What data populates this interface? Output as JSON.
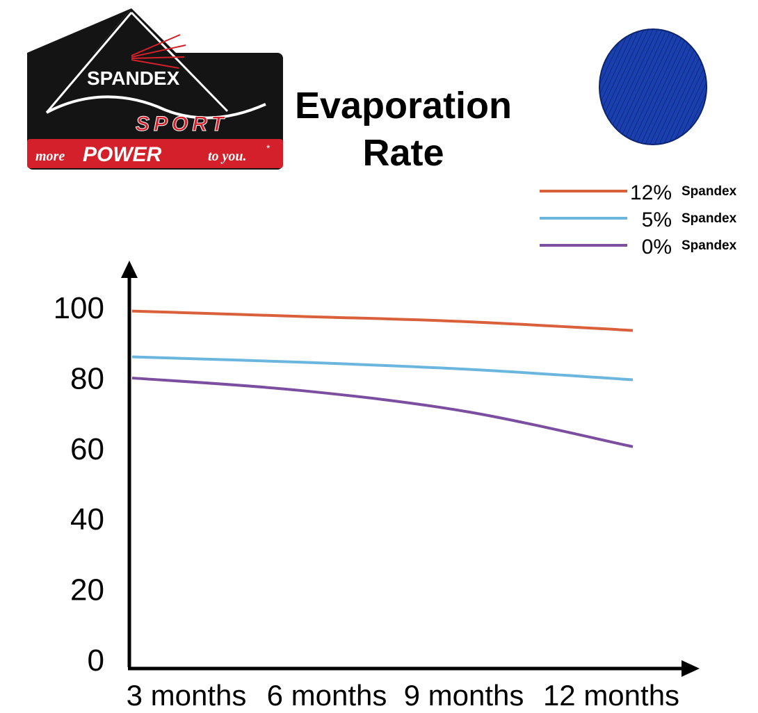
{
  "logo": {
    "brand_text": "SPANDEX",
    "sport_text": "SPORT",
    "tagline_prefix": "more",
    "tagline_power": "POWER",
    "tagline_suffix": "to you.",
    "tagline_mark": "*",
    "colors": {
      "badge_black": "#141414",
      "badge_red": "#d4202a",
      "text_white": "#ffffff"
    }
  },
  "title_line1": "Evaporation",
  "title_line2": "Rate",
  "swatch": {
    "icon": "blue-knit-fabric-swatch",
    "color": "#1a3fae"
  },
  "chart_data": {
    "type": "line",
    "title": "Evaporation Rate",
    "xlabel": "",
    "ylabel": "",
    "categories": [
      "3 months",
      "6 months",
      "9 months",
      "12 months"
    ],
    "y_ticks": [
      "0",
      "20",
      "40",
      "60",
      "80",
      "100"
    ],
    "ylim": [
      0,
      100
    ],
    "grid": false,
    "legend_position": "top-right",
    "series": [
      {
        "name": "12% Spandex",
        "legend_pct": "12%",
        "legend_word": "Spandex",
        "color": "#d9603b",
        "values": [
          98.5,
          97,
          95.5,
          93
        ]
      },
      {
        "name": "5% Spandex",
        "legend_pct": "5%",
        "legend_word": "Spandex",
        "color": "#6bb6de",
        "values": [
          85.5,
          84,
          82,
          79
        ]
      },
      {
        "name": "0% Spandex",
        "legend_pct": "0%",
        "legend_word": "Spandex",
        "color": "#7b4ea0",
        "values": [
          79.5,
          76,
          70,
          60
        ]
      }
    ]
  }
}
